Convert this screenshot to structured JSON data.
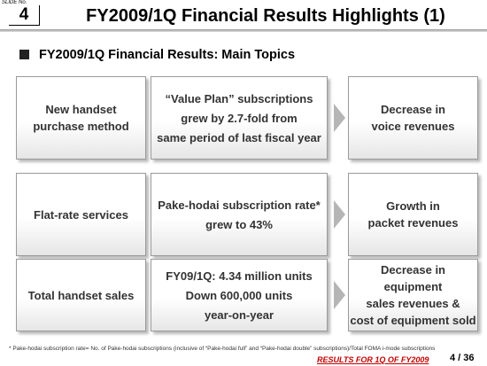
{
  "header": {
    "slide_label": "SLIDE No.",
    "slide_number": "4",
    "title": "FY2009/1Q Financial Results Highlights (1)"
  },
  "section_title": "FY2009/1Q Financial Results: Main Topics",
  "rows": [
    {
      "topic": [
        "New handset",
        "purchase method"
      ],
      "detail": [
        "“Value Plan” subscriptions",
        "grew by 2.7-fold from",
        "same period of last fiscal year"
      ],
      "result": [
        "Decrease in",
        "voice revenues"
      ]
    },
    {
      "topic": [
        "Flat-rate services"
      ],
      "detail": [
        "Pake-hodai subscription rate*",
        "grew to 43%"
      ],
      "result": [
        "Growth in",
        "packet revenues"
      ]
    },
    {
      "topic": [
        "Total handset sales"
      ],
      "detail": [
        "FY09/1Q: 4.34 million units",
        "Down 600,000 units",
        "year-on-year"
      ],
      "result": [
        "Decrease in",
        "equipment",
        "sales revenues &",
        "cost of equipment sold"
      ]
    }
  ],
  "footnote": "* Pake-hodai subscription rate= No. of Pake-hodai subscriptions (inclusive of “Pake-hodai full” and “Pake-hodai double” subscriptions)/Total FOMA i-mode subscriptions",
  "footer": {
    "text": "RESULTS FOR 1Q OF FY2009",
    "page": "4 / 36"
  }
}
